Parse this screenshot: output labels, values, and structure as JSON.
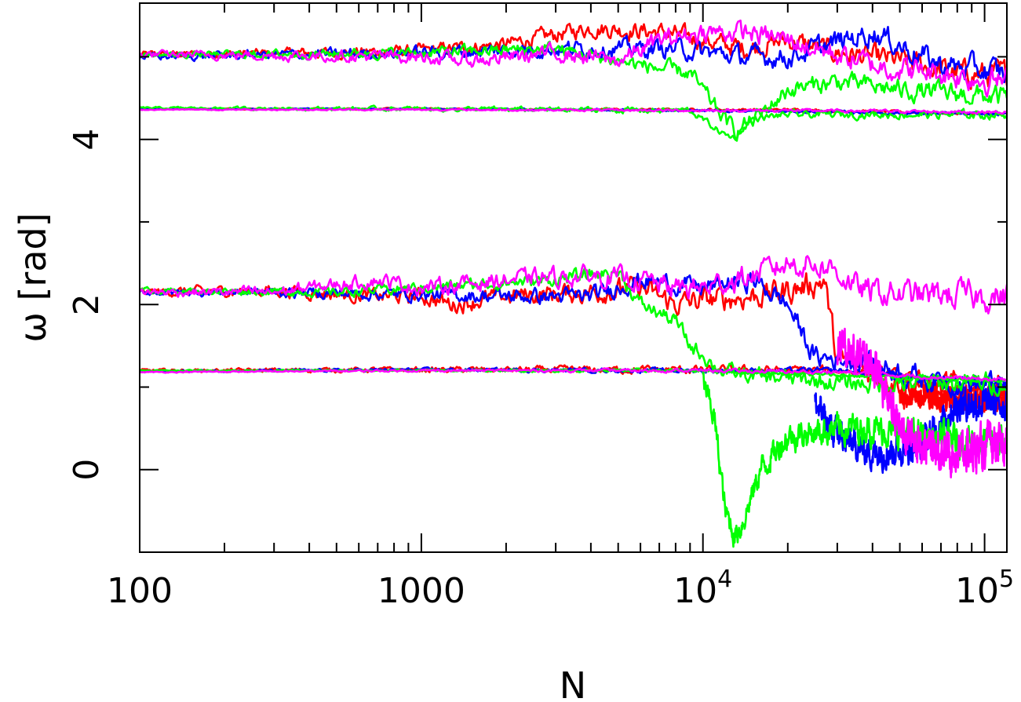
{
  "chart_data": {
    "type": "line",
    "title": "",
    "xlabel": "N",
    "ylabel": "ω [rad]",
    "xscale": "log",
    "xlim": [
      100,
      120000
    ],
    "ylim": [
      -1,
      5.65
    ],
    "grid": false,
    "legend": "none",
    "x_ticks": [
      {
        "value": 100,
        "label": "100"
      },
      {
        "value": 1000,
        "label": "1000"
      },
      {
        "value": 10000,
        "base": "10",
        "exp": "4"
      },
      {
        "value": 100000,
        "base": "10",
        "exp": "5"
      }
    ],
    "y_ticks": [
      {
        "value": 0,
        "label": "0"
      },
      {
        "value": 2,
        "label": "2"
      },
      {
        "value": 4,
        "label": "4"
      }
    ],
    "series": [
      {
        "color": "#ff0000",
        "tracks": [
          {
            "x": [
              100,
              300,
              1000,
              2000,
              4000,
              7000,
              10000,
              14000,
              20000,
              30000,
              50000,
              80000,
              120000
            ],
            "y": [
              5.03,
              5.04,
              5.07,
              5.15,
              5.35,
              5.3,
              5.2,
              5.1,
              5.2,
              5.05,
              4.95,
              4.8,
              4.78
            ],
            "noise": 0.12
          },
          {
            "x": [
              100,
              1000,
              10000,
              20000,
              50000,
              120000
            ],
            "y": [
              4.37,
              4.37,
              4.36,
              4.36,
              4.33,
              4.3
            ],
            "noise": 0.015
          },
          {
            "x": [
              100,
              300,
              700,
              1000,
              1300,
              2000,
              4000,
              6000,
              8000,
              10000,
              15000,
              22000,
              27000,
              30000,
              40000,
              60000,
              120000
            ],
            "y": [
              2.15,
              2.17,
              2.1,
              2.1,
              2.0,
              2.1,
              2.15,
              2.2,
              2.0,
              2.05,
              2.1,
              2.2,
              2.3,
              1.3,
              1.2,
              1.0,
              0.95
            ],
            "noise": 0.15
          },
          {
            "x": [
              100,
              1000,
              10000,
              30000,
              50000,
              70000,
              120000
            ],
            "y": [
              1.2,
              1.21,
              1.21,
              1.2,
              1.15,
              0.95,
              0.95
            ],
            "noise": 0.05
          },
          {
            "x": [
              50000,
              70000,
              100000,
              120000
            ],
            "y": [
              0.9,
              0.85,
              0.85,
              0.85
            ],
            "noise": 0.1
          }
        ]
      },
      {
        "color": "#0000ff",
        "tracks": [
          {
            "x": [
              100,
              1000,
              3000,
              8000,
              14000,
              20000,
              40000,
              70000,
              120000
            ],
            "y": [
              5.0,
              5.05,
              5.1,
              5.1,
              5.0,
              5.0,
              5.3,
              4.9,
              4.8
            ],
            "noise": 0.12
          },
          {
            "x": [
              100,
              1000,
              10000,
              30000,
              120000
            ],
            "y": [
              4.37,
              4.37,
              4.35,
              4.33,
              4.3
            ],
            "noise": 0.015
          },
          {
            "x": [
              100,
              300,
              1000,
              2000,
              4000,
              6000,
              10000,
              15000,
              20000,
              25000,
              30000,
              40000,
              60000,
              120000
            ],
            "y": [
              2.15,
              2.15,
              2.12,
              2.1,
              2.1,
              2.3,
              2.2,
              2.3,
              2.0,
              1.35,
              1.35,
              1.3,
              1.1,
              1.0
            ],
            "noise": 0.12
          },
          {
            "x": [
              100,
              1000,
              10000,
              30000,
              120000
            ],
            "y": [
              1.19,
              1.21,
              1.2,
              1.2,
              1.05
            ],
            "noise": 0.03
          },
          {
            "x": [
              25000,
              30000,
              40000,
              60000,
              80000,
              120000
            ],
            "y": [
              0.8,
              0.4,
              0.2,
              0.3,
              0.8,
              0.8
            ],
            "noise": 0.15
          }
        ]
      },
      {
        "color": "#00ff00",
        "tracks": [
          {
            "x": [
              100,
              1000,
              3000,
              6000,
              9000,
              11000,
              13000,
              16000,
              20000,
              30000,
              50000,
              120000
            ],
            "y": [
              5.02,
              5.05,
              5.1,
              4.9,
              4.8,
              4.4,
              4.1,
              4.3,
              4.6,
              4.7,
              4.6,
              4.5
            ],
            "noise": 0.1
          },
          {
            "x": [
              100,
              1000,
              9000,
              12000,
              13000,
              15000,
              20000,
              60000,
              120000
            ],
            "y": [
              4.38,
              4.37,
              4.35,
              4.05,
              4.02,
              4.25,
              4.3,
              4.3,
              4.3
            ],
            "noise": 0.04
          },
          {
            "x": [
              100,
              500,
              1000,
              3000,
              5000,
              6000,
              8000,
              9000,
              10000,
              11000,
              13000,
              20000,
              30000,
              50000,
              120000
            ],
            "y": [
              2.17,
              2.15,
              2.2,
              2.3,
              2.4,
              2.0,
              1.8,
              1.5,
              1.4,
              1.25,
              1.15,
              1.1,
              1.05,
              1.05,
              1.05
            ],
            "noise": 0.1
          },
          {
            "x": [
              100,
              1000,
              10000,
              120000
            ],
            "y": [
              1.2,
              1.2,
              1.2,
              1.07
            ],
            "noise": 0.02
          },
          {
            "x": [
              10000,
              11000,
              12000,
              13000,
              14000,
              16000,
              20000,
              30000,
              40000,
              60000,
              120000
            ],
            "y": [
              1.1,
              0.6,
              -0.5,
              -0.8,
              -0.6,
              0.0,
              0.4,
              0.5,
              0.5,
              0.4,
              0.3
            ],
            "noise": 0.15
          }
        ]
      },
      {
        "color": "#ff00ff",
        "tracks": [
          {
            "x": [
              100,
              1000,
              1500,
              3000,
              5000,
              7000,
              10000,
              14000,
              20000,
              40000,
              120000
            ],
            "y": [
              5.03,
              5.0,
              4.95,
              5.05,
              4.95,
              5.2,
              5.3,
              5.3,
              5.2,
              4.9,
              4.7
            ],
            "noise": 0.12
          },
          {
            "x": [
              100,
              1000,
              10000,
              20000,
              120000
            ],
            "y": [
              4.36,
              4.36,
              4.35,
              4.35,
              4.33
            ],
            "noise": 0.015
          },
          {
            "x": [
              100,
              300,
              700,
              1000,
              2000,
              4000,
              6000,
              8000,
              10000,
              15000,
              20000,
              25000,
              30000,
              35000,
              40000,
              50000,
              120000
            ],
            "y": [
              2.15,
              2.15,
              2.3,
              2.2,
              2.3,
              2.35,
              2.3,
              2.2,
              2.2,
              2.35,
              2.5,
              2.5,
              2.4,
              2.2,
              2.15,
              2.12,
              2.1
            ],
            "noise": 0.14
          },
          {
            "x": [
              100,
              1000,
              10000,
              30000,
              120000
            ],
            "y": [
              1.18,
              1.2,
              1.2,
              1.18,
              1.08
            ],
            "noise": 0.02
          },
          {
            "x": [
              30000,
              40000,
              50000,
              60000,
              80000,
              120000
            ],
            "y": [
              1.5,
              1.3,
              0.5,
              0.3,
              0.2,
              0.3
            ],
            "noise": 0.18
          }
        ]
      }
    ]
  }
}
